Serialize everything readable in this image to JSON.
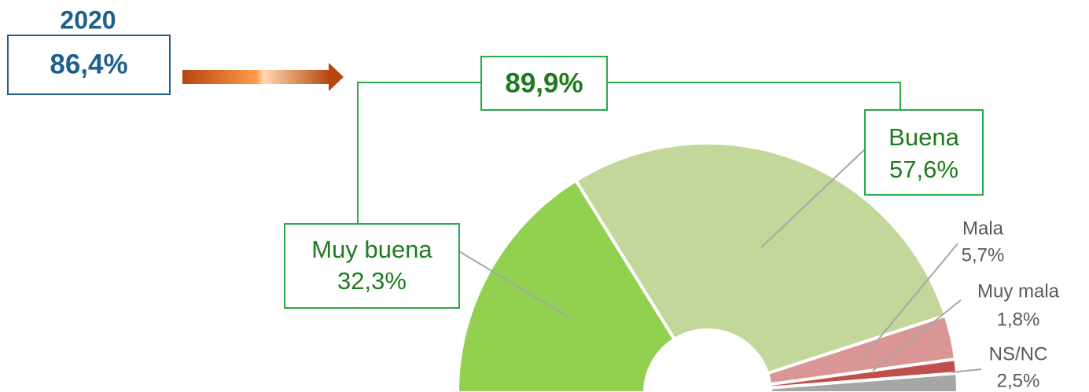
{
  "chart_data": {
    "type": "pie",
    "categories": [
      "Muy buena",
      "Buena",
      "Mala",
      "Muy mala",
      "NS/NC"
    ],
    "values": [
      32.3,
      57.6,
      5.7,
      1.8,
      2.5
    ],
    "value_labels": [
      "32,3%",
      "57,6%",
      "5,7%",
      "1,8%",
      "2,5%"
    ],
    "colors": [
      "#92d050",
      "#c4d79b",
      "#da9694",
      "#c0504d",
      "#a6a6a6"
    ],
    "annotations": {
      "previous_year": "2020",
      "previous_total": "86,4%",
      "positive_total": "89,9%"
    }
  }
}
